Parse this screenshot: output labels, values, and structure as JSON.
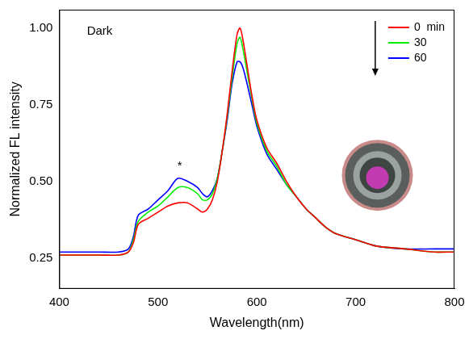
{
  "chart_data": {
    "type": "line",
    "x_label": "Wavelength(nm)",
    "y_label": "Normalized FL intensity",
    "x": [
      400,
      420,
      440,
      460,
      470,
      475,
      480,
      490,
      500,
      510,
      520,
      530,
      540,
      545,
      550,
      555,
      560,
      565,
      570,
      575,
      580,
      583,
      586,
      590,
      595,
      600,
      610,
      620,
      630,
      640,
      650,
      660,
      670,
      680,
      700,
      720,
      750,
      780,
      800
    ],
    "series": [
      {
        "name": "0  min",
        "color": "#ff0000",
        "values": [
          0.26,
          0.26,
          0.26,
          0.26,
          0.27,
          0.3,
          0.36,
          0.38,
          0.4,
          0.42,
          0.43,
          0.43,
          0.41,
          0.4,
          0.41,
          0.44,
          0.5,
          0.6,
          0.72,
          0.86,
          0.98,
          1.0,
          0.96,
          0.88,
          0.78,
          0.7,
          0.61,
          0.56,
          0.5,
          0.45,
          0.41,
          0.38,
          0.35,
          0.33,
          0.31,
          0.29,
          0.28,
          0.27,
          0.27
        ]
      },
      {
        "name": "30",
        "color": "#00ee00",
        "values": [
          0.26,
          0.26,
          0.26,
          0.26,
          0.27,
          0.31,
          0.37,
          0.4,
          0.42,
          0.45,
          0.48,
          0.48,
          0.46,
          0.44,
          0.44,
          0.46,
          0.51,
          0.6,
          0.71,
          0.84,
          0.95,
          0.97,
          0.93,
          0.86,
          0.77,
          0.69,
          0.6,
          0.55,
          0.49,
          0.45,
          0.41,
          0.38,
          0.35,
          0.33,
          0.31,
          0.29,
          0.28,
          0.27,
          0.27
        ]
      },
      {
        "name": "60",
        "color": "#0000ff",
        "values": [
          0.27,
          0.27,
          0.27,
          0.27,
          0.28,
          0.32,
          0.39,
          0.41,
          0.44,
          0.47,
          0.51,
          0.5,
          0.48,
          0.46,
          0.45,
          0.47,
          0.51,
          0.6,
          0.7,
          0.82,
          0.89,
          0.89,
          0.87,
          0.82,
          0.75,
          0.68,
          0.59,
          0.54,
          0.49,
          0.45,
          0.41,
          0.38,
          0.35,
          0.33,
          0.31,
          0.29,
          0.28,
          0.28,
          0.28
        ]
      }
    ],
    "xlim": [
      400,
      800
    ],
    "xticks": [
      400,
      500,
      600,
      700,
      800
    ],
    "ylim": [
      0.15,
      1.06
    ],
    "yticks": [
      0.25,
      {
        "value": 0.5,
        "label": "0.50"
      },
      0.75,
      {
        "value": 1.0,
        "label": "1.00"
      }
    ],
    "annotations": [
      {
        "text": "Dark",
        "x": 428,
        "y": 0.99
      },
      {
        "text": "*",
        "x": 522,
        "y": 0.55
      }
    ],
    "grid": false,
    "legend": "upper right"
  }
}
